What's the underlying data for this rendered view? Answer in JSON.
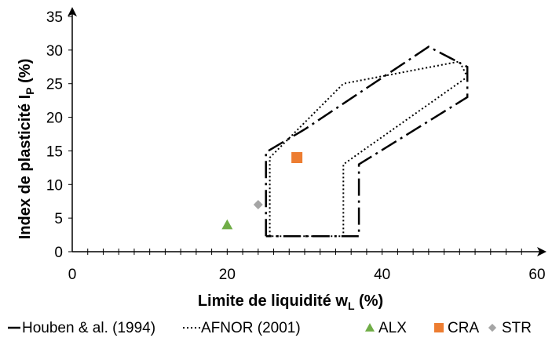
{
  "chart_data": {
    "type": "scatter",
    "xlabel": {
      "main": "Limite de liquidité w",
      "sub": "L",
      "suffix": " (%)"
    },
    "ylabel": {
      "main": "Index de plasticité I",
      "sub": "P",
      "suffix": " (%)"
    },
    "xlim": [
      0,
      60
    ],
    "ylim": [
      0,
      35
    ],
    "x_ticks": [
      0,
      20,
      40,
      60
    ],
    "y_ticks": [
      0,
      5,
      10,
      15,
      20,
      25,
      30,
      35
    ],
    "x_minor_step": 2,
    "grid": false,
    "legend_position": "bottom",
    "series": [
      {
        "name": "Houben & al. (1994)",
        "kind": "line",
        "dash": "dashdot",
        "color": "#000000",
        "points": [
          [
            25,
            2.3
          ],
          [
            25,
            14.8
          ],
          [
            30,
            18.2
          ],
          [
            46,
            30.5
          ],
          [
            51,
            27.5
          ],
          [
            51,
            23
          ],
          [
            37,
            13
          ],
          [
            37,
            2.3
          ],
          [
            25,
            2.3
          ]
        ]
      },
      {
        "name": "AFNOR (2001)",
        "kind": "line",
        "dash": "dotted",
        "color": "#000000",
        "points": [
          [
            25.5,
            2.3
          ],
          [
            25.5,
            14
          ],
          [
            35,
            25
          ],
          [
            50,
            28.3
          ],
          [
            51,
            26
          ],
          [
            35,
            13
          ],
          [
            35,
            2.3
          ],
          [
            25.5,
            2.3
          ]
        ]
      },
      {
        "name": "ALX",
        "kind": "marker",
        "marker": "triangle",
        "color": "#70ad47",
        "points": [
          [
            20,
            4
          ]
        ]
      },
      {
        "name": "CRA",
        "kind": "marker",
        "marker": "square",
        "color": "#ed7d31",
        "points": [
          [
            29,
            14
          ]
        ]
      },
      {
        "name": "STR",
        "kind": "marker",
        "marker": "diamond",
        "color": "#a5a5a5",
        "points": [
          [
            24,
            7
          ]
        ]
      }
    ]
  }
}
